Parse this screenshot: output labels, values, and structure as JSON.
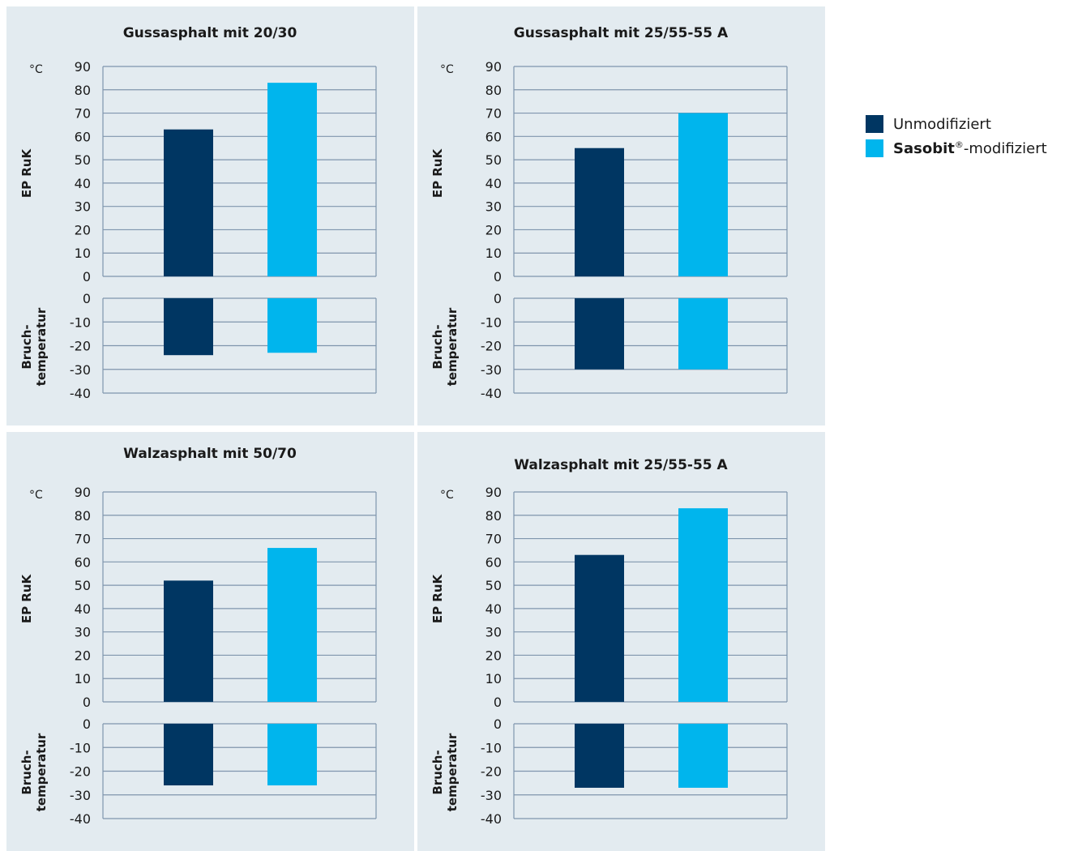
{
  "colors": {
    "unmodified": "#003662",
    "modified": "#00b5ed",
    "grid": "#7f95ad",
    "panel": "#e3ebf0"
  },
  "legend": {
    "unmodified": "Unmodifiziert",
    "modified_brand": "Sasobit",
    "modified_reg": "®",
    "modified_suffix": "-modifiziert"
  },
  "chart_data": [
    {
      "type": "bar",
      "title": "Gussasphalt mit 20/30",
      "unit": "°C",
      "ylabel_top": "EP RuK",
      "ylabel_bottom": [
        "Bruch-",
        "temperatur"
      ],
      "ylim_top": [
        0,
        90
      ],
      "ylim_bottom": [
        -40,
        0
      ],
      "yticks_top": [
        "0",
        "10",
        "20",
        "30",
        "40",
        "50",
        "60",
        "70",
        "80",
        "90"
      ],
      "yticks_bottom": [
        "0",
        "-10",
        "-20",
        "-30",
        "-40"
      ],
      "series": [
        {
          "name": "Unmodifiziert",
          "ep_ruk": 63,
          "bruchtemperatur": -24
        },
        {
          "name": "Sasobit®-modifiziert",
          "ep_ruk": 83,
          "bruchtemperatur": -23
        }
      ]
    },
    {
      "type": "bar",
      "title": "Gussasphalt mit 25/55-55 A",
      "unit": "°C",
      "ylabel_top": "EP RuK",
      "ylabel_bottom": [
        "Bruch-",
        "temperatur"
      ],
      "ylim_top": [
        0,
        90
      ],
      "ylim_bottom": [
        -40,
        0
      ],
      "yticks_top": [
        "0",
        "10",
        "20",
        "30",
        "40",
        "50",
        "60",
        "70",
        "80",
        "90"
      ],
      "yticks_bottom": [
        "0",
        "-10",
        "-20",
        "-30",
        "-40"
      ],
      "series": [
        {
          "name": "Unmodifiziert",
          "ep_ruk": 55,
          "bruchtemperatur": -30
        },
        {
          "name": "Sasobit®-modifiziert",
          "ep_ruk": 70,
          "bruchtemperatur": -30
        }
      ]
    },
    {
      "type": "bar",
      "title": "Walzasphalt mit 50/70",
      "unit": "°C",
      "ylabel_top": "EP RuK",
      "ylabel_bottom": [
        "Bruch-",
        "temperatur"
      ],
      "ylim_top": [
        0,
        90
      ],
      "ylim_bottom": [
        -40,
        0
      ],
      "yticks_top": [
        "0",
        "10",
        "20",
        "30",
        "40",
        "50",
        "60",
        "70",
        "80",
        "90"
      ],
      "yticks_bottom": [
        "0",
        "-10",
        "-20",
        "-30",
        "-40"
      ],
      "series": [
        {
          "name": "Unmodifiziert",
          "ep_ruk": 52,
          "bruchtemperatur": -26
        },
        {
          "name": "Sasobit®-modifiziert",
          "ep_ruk": 66,
          "bruchtemperatur": -26
        }
      ]
    },
    {
      "type": "bar",
      "title": "Walzasphalt mit 25/55-55 A",
      "unit": "°C",
      "ylabel_top": "EP RuK",
      "ylabel_bottom": [
        "Bruch-",
        "temperatur"
      ],
      "ylim_top": [
        0,
        90
      ],
      "ylim_bottom": [
        -40,
        0
      ],
      "yticks_top": [
        "0",
        "10",
        "20",
        "30",
        "40",
        "50",
        "60",
        "70",
        "80",
        "90"
      ],
      "yticks_bottom": [
        "0",
        "-10",
        "-20",
        "-30",
        "-40"
      ],
      "series": [
        {
          "name": "Unmodifiziert",
          "ep_ruk": 63,
          "bruchtemperatur": -27
        },
        {
          "name": "Sasobit®-modifiziert",
          "ep_ruk": 83,
          "bruchtemperatur": -27
        }
      ]
    }
  ]
}
